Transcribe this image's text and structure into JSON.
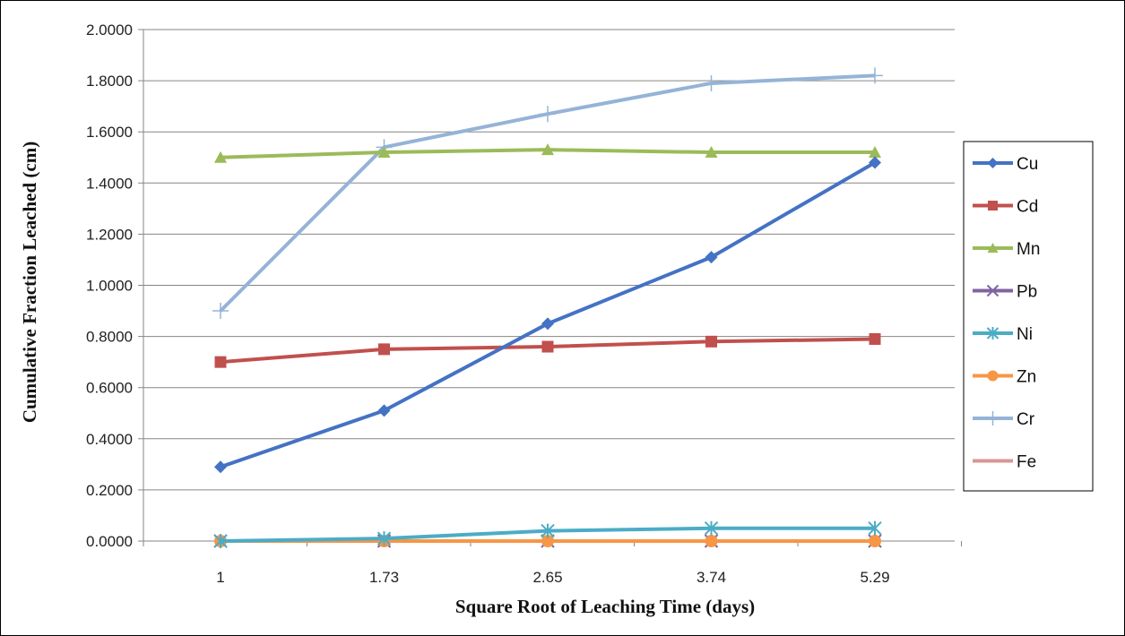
{
  "chart_data": {
    "type": "line",
    "title": "",
    "xlabel": "Square Root of Leaching Time (days)",
    "ylabel": "Cumulative Fraction Leached (cm)",
    "categories": [
      "1",
      "1.73",
      "2.65",
      "3.74",
      "5.29"
    ],
    "ylim": [
      0,
      2
    ],
    "y_ticks": [
      "0.0000",
      "0.2000",
      "0.4000",
      "0.6000",
      "0.8000",
      "1.0000",
      "1.2000",
      "1.4000",
      "1.6000",
      "1.8000",
      "2.0000"
    ],
    "grid": "horizontal",
    "legend_position": "right",
    "series": [
      {
        "name": "Cu",
        "color": "#4472C4",
        "marker": "diamond",
        "values": [
          0.29,
          0.51,
          0.85,
          1.11,
          1.48
        ]
      },
      {
        "name": "Cd",
        "color": "#C0504D",
        "marker": "square",
        "values": [
          0.7,
          0.75,
          0.76,
          0.78,
          0.79
        ]
      },
      {
        "name": "Mn",
        "color": "#9BBB59",
        "marker": "triangle",
        "values": [
          1.5,
          1.52,
          1.53,
          1.52,
          1.52
        ]
      },
      {
        "name": "Pb",
        "color": "#8064A2",
        "marker": "x",
        "values": [
          0.0,
          0.0,
          0.0,
          0.0,
          0.0
        ]
      },
      {
        "name": "Ni",
        "color": "#4BACC6",
        "marker": "star",
        "values": [
          0.0,
          0.01,
          0.04,
          0.05,
          0.05
        ]
      },
      {
        "name": "Zn",
        "color": "#F79646",
        "marker": "circle",
        "values": [
          0.0,
          0.0,
          0.0,
          0.0,
          0.0
        ]
      },
      {
        "name": "Cr",
        "color": "#95B3D7",
        "marker": "plus",
        "values": [
          0.9,
          1.54,
          1.67,
          1.79,
          1.82
        ]
      },
      {
        "name": "Fe",
        "color": "#D99694",
        "marker": "none",
        "values": [
          0.0,
          0.0,
          0.0,
          0.0,
          0.0
        ]
      }
    ]
  }
}
